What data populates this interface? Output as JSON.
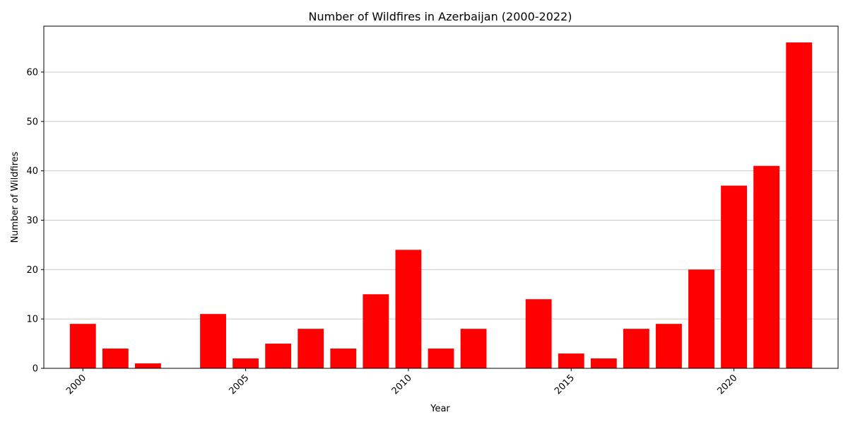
{
  "chart_data": {
    "type": "bar",
    "title": "Number of Wildfires in Azerbaijan (2000-2022)",
    "xlabel": "Year",
    "ylabel": "Number of Wildfires",
    "x": [
      2000,
      2001,
      2002,
      2004,
      2005,
      2006,
      2007,
      2008,
      2009,
      2010,
      2011,
      2012,
      2014,
      2015,
      2016,
      2017,
      2018,
      2019,
      2020,
      2021,
      2022
    ],
    "values": [
      9,
      4,
      1,
      11,
      2,
      5,
      8,
      4,
      15,
      24,
      4,
      8,
      14,
      3,
      2,
      8,
      9,
      20,
      37,
      41,
      66
    ],
    "xlim": [
      1998.8,
      2023.2
    ],
    "ylim": [
      0,
      69.3
    ],
    "x_ticks": [
      2000,
      2005,
      2010,
      2015,
      2020
    ],
    "x_tick_labels": [
      "2000",
      "2005",
      "2010",
      "2015",
      "2020"
    ],
    "y_ticks": [
      0,
      10,
      20,
      30,
      40,
      50,
      60
    ],
    "y_tick_labels": [
      "0",
      "10",
      "20",
      "30",
      "40",
      "50",
      "60"
    ],
    "grid": "y",
    "bar_color": "#ff0000",
    "grid_color": "#c8c8c8"
  }
}
